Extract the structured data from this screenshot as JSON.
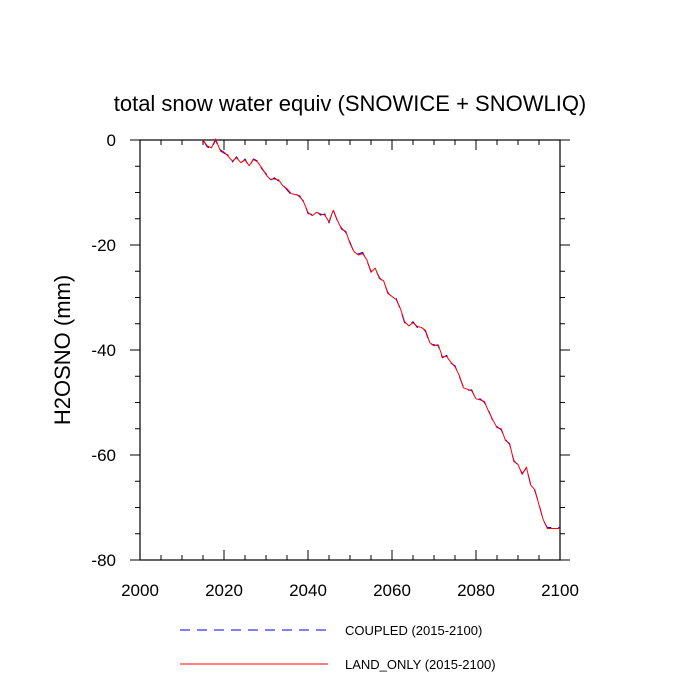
{
  "chart_data": {
    "type": "line",
    "title": "total snow water equiv (SNOWICE + SNOWLIQ)",
    "xlabel": "",
    "ylabel": "H2OSNO  (mm)",
    "xlim": [
      2000,
      2100
    ],
    "ylim": [
      -80,
      0
    ],
    "xticks": [
      2000,
      2020,
      2040,
      2060,
      2080,
      2100
    ],
    "yticks": [
      0,
      -20,
      -40,
      -60,
      -80
    ],
    "x": [
      2015,
      2016,
      2017,
      2018,
      2019,
      2020,
      2021,
      2022,
      2023,
      2024,
      2025,
      2026,
      2027,
      2028,
      2029,
      2030,
      2031,
      2032,
      2033,
      2034,
      2035,
      2036,
      2037,
      2038,
      2039,
      2040,
      2041,
      2042,
      2043,
      2044,
      2045,
      2046,
      2047,
      2048,
      2049,
      2050,
      2051,
      2052,
      2053,
      2054,
      2055,
      2056,
      2057,
      2058,
      2059,
      2060,
      2061,
      2062,
      2063,
      2064,
      2065,
      2066,
      2067,
      2068,
      2069,
      2070,
      2071,
      2072,
      2073,
      2074,
      2075,
      2076,
      2077,
      2078,
      2079,
      2080,
      2081,
      2082,
      2083,
      2084,
      2085,
      2086,
      2087,
      2088,
      2089,
      2090,
      2091,
      2092,
      2093,
      2094,
      2095,
      2096,
      2097,
      2098,
      2099,
      2100
    ],
    "series": [
      {
        "name": "COUPLED (2015-2100)",
        "color": "#0000ff",
        "dash": "dashed",
        "values": [
          0,
          -1.3,
          -1.7,
          0,
          -2,
          -2.5,
          -2.9,
          -4.2,
          -3.2,
          -4.5,
          -3.6,
          -5.1,
          -3.6,
          -4.0,
          -5.5,
          -6.4,
          -7.7,
          -7.2,
          -7.8,
          -8.5,
          -9.5,
          -10.4,
          -10.2,
          -10.8,
          -11.7,
          -14.0,
          -14.2,
          -13.6,
          -14.3,
          -14.1,
          -15.8,
          -13.2,
          -15.5,
          -16.8,
          -17.6,
          -19.5,
          -21.5,
          -21.7,
          -21.4,
          -23.0,
          -25.0,
          -24.6,
          -26.2,
          -27.0,
          -29.0,
          -30.0,
          -30.2,
          -32.3,
          -34.8,
          -35.2,
          -34.6,
          -35.7,
          -35.5,
          -36.5,
          -38.8,
          -39.0,
          -39.2,
          -41.5,
          -41.0,
          -42.5,
          -43.0,
          -45.0,
          -47.0,
          -47.7,
          -47.6,
          -49.5,
          -49.3,
          -50.0,
          -51.5,
          -53.5,
          -54.6,
          -55.2,
          -57.0,
          -58.0,
          -61.0,
          -62.0,
          -63.5,
          -62.5,
          -65.5,
          -66.8,
          -69.3,
          -72.5,
          -73.8,
          -73.8,
          -73.8,
          -73.8
        ]
      },
      {
        "name": "LAND_ONLY (2015-2100)",
        "color": "#ff0000",
        "dash": "solid",
        "values": [
          0,
          -1.1,
          -1.5,
          0.2,
          -1.8,
          -2.3,
          -3.1,
          -4.0,
          -3.4,
          -4.3,
          -3.8,
          -4.9,
          -3.7,
          -4.2,
          -5.3,
          -6.6,
          -7.5,
          -7.4,
          -7.6,
          -8.7,
          -9.3,
          -10.2,
          -10.4,
          -10.6,
          -11.9,
          -13.8,
          -14.4,
          -13.8,
          -14.1,
          -14.3,
          -15.6,
          -13.4,
          -15.3,
          -17.0,
          -17.4,
          -19.7,
          -21.3,
          -21.9,
          -21.6,
          -22.8,
          -25.2,
          -24.4,
          -26.4,
          -26.8,
          -29.2,
          -29.8,
          -30.4,
          -32.1,
          -34.6,
          -35.4,
          -34.8,
          -35.5,
          -35.7,
          -36.3,
          -38.6,
          -39.2,
          -39.0,
          -41.3,
          -41.2,
          -42.3,
          -43.2,
          -44.8,
          -47.2,
          -47.5,
          -47.8,
          -49.3,
          -49.5,
          -49.8,
          -51.7,
          -53.3,
          -54.8,
          -55.0,
          -57.2,
          -57.8,
          -61.2,
          -61.8,
          -63.7,
          -62.3,
          -65.7,
          -66.6,
          -69.5,
          -72.3,
          -74.0,
          -74.0,
          -74.0,
          -74.0
        ]
      }
    ],
    "legend": {
      "placement": "bottom",
      "entries": [
        "COUPLED (2015-2100)",
        "LAND_ONLY (2015-2100)"
      ]
    }
  }
}
